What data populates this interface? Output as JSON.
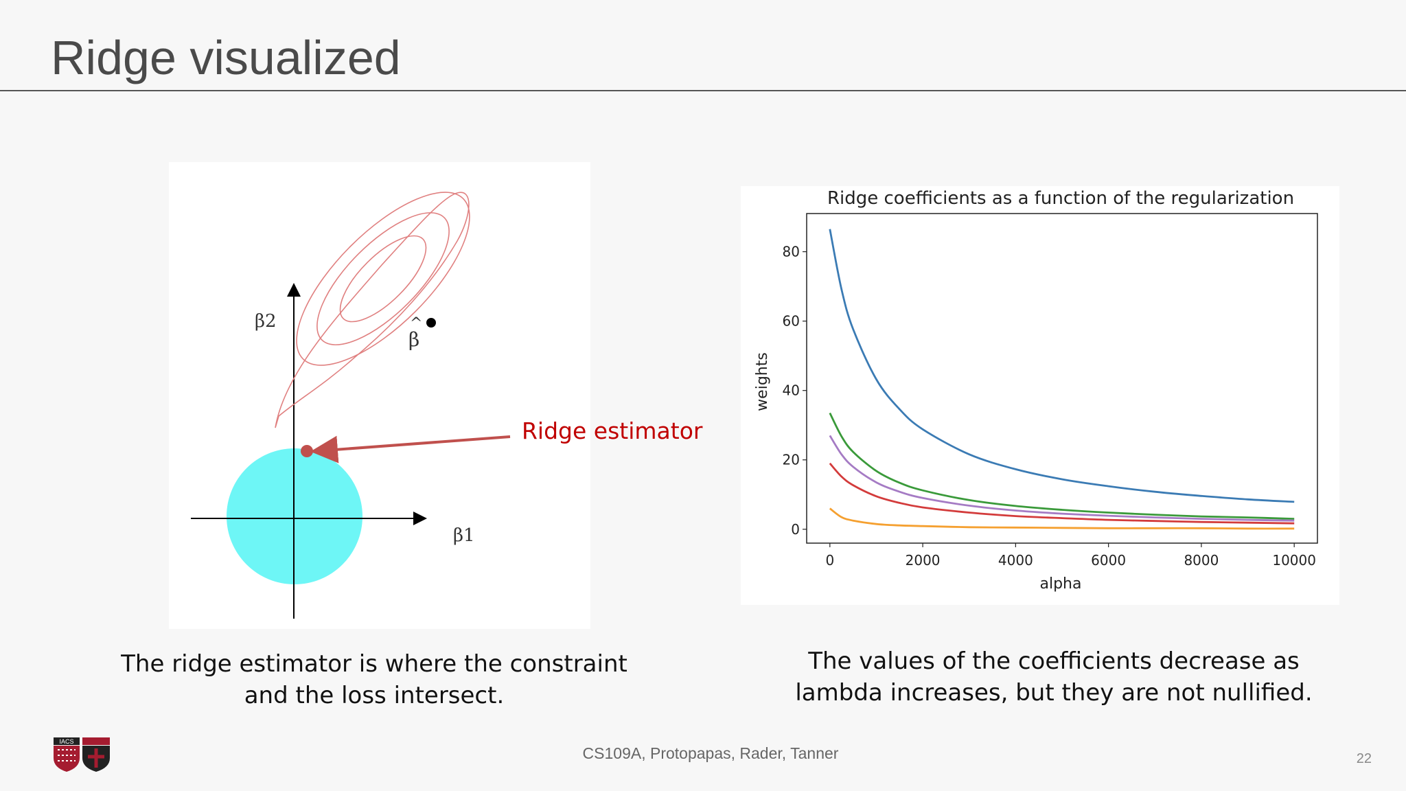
{
  "slide": {
    "title": "Ridge visualized",
    "page_number": "22",
    "footer": "CS109A, Protopapas, Rader, Tanner",
    "logo_text": "IACS"
  },
  "left_figure": {
    "axis_labels": [
      "β2",
      "β1"
    ],
    "beta_hat_label": "β",
    "annotation": "Ridge estimator",
    "colors": {
      "contour": "#e08080",
      "disk": "#6ef6f6",
      "arrow": "#c0504d",
      "annotation": "#c00000"
    }
  },
  "captions": {
    "left_line1": "The ridge estimator is where the constraint",
    "left_line2": "and the loss intersect.",
    "right_line1": "The values of the coefficients decrease as",
    "right_line2": "lambda increases, but they are not nullified."
  },
  "chart_data": {
    "type": "line",
    "title": "Ridge coefficients as a function of the regularization",
    "xlabel": "alpha",
    "ylabel": "weights",
    "xlim": [
      -500,
      10500
    ],
    "ylim": [
      -4,
      91
    ],
    "xticks": [
      0,
      2000,
      4000,
      6000,
      8000,
      10000
    ],
    "yticks": [
      0,
      20,
      40,
      60,
      80
    ],
    "grid": false,
    "x": [
      0,
      250,
      500,
      1000,
      1500,
      2000,
      3000,
      4000,
      5000,
      6000,
      7000,
      8000,
      9000,
      10000
    ],
    "series": [
      {
        "color": "#3b7bb4",
        "values": [
          86.5,
          69.2,
          57.7,
          43.2,
          34.6,
          28.8,
          21.6,
          17.3,
          14.4,
          12.4,
          10.8,
          9.6,
          8.6,
          7.9
        ]
      },
      {
        "color": "#3a9a3a",
        "values": [
          33.5,
          26.8,
          22.3,
          16.8,
          13.4,
          11.2,
          8.4,
          6.7,
          5.6,
          4.8,
          4.2,
          3.7,
          3.4,
          3.0
        ]
      },
      {
        "color": "#a57bc4",
        "values": [
          27.0,
          21.6,
          18.0,
          13.5,
          10.8,
          9.0,
          6.8,
          5.4,
          4.5,
          3.9,
          3.4,
          3.0,
          2.7,
          2.5
        ]
      },
      {
        "color": "#d33b3b",
        "values": [
          19.0,
          15.2,
          12.7,
          9.5,
          7.6,
          6.3,
          4.8,
          3.8,
          3.2,
          2.7,
          2.4,
          2.1,
          1.9,
          1.7
        ]
      },
      {
        "color": "#f5a030",
        "values": [
          6.0,
          3.5,
          2.5,
          1.5,
          1.1,
          0.9,
          0.6,
          0.5,
          0.4,
          0.3,
          0.3,
          0.3,
          0.2,
          0.2
        ]
      }
    ]
  }
}
